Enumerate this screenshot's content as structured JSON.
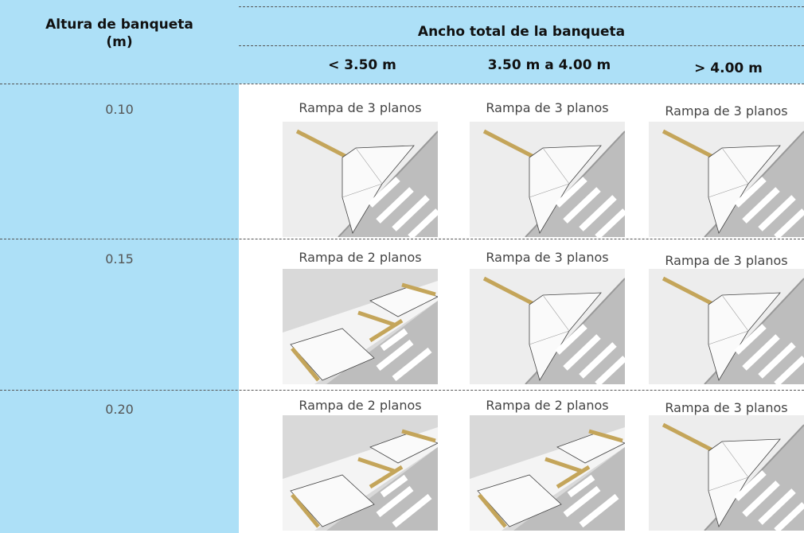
{
  "header": {
    "height_label": "Altura de banqueta (m)",
    "width_label": "Ancho total de la banqueta",
    "columns": [
      "< 3.50 m",
      "3.50 m a 4.00 m",
      "> 4.00 m"
    ]
  },
  "rows": [
    {
      "height": "0.10",
      "cells": [
        "Rampa de 3 planos",
        "Rampa de 3 planos",
        "Rampa de 3 planos"
      ]
    },
    {
      "height": "0.15",
      "cells": [
        "Rampa de 2 planos",
        "Rampa de 3 planos",
        "Rampa de 3 planos"
      ]
    },
    {
      "height": "0.20",
      "cells": [
        "Rampa de 2 planos",
        "Rampa de 2 planos",
        "Rampa de 3 planos"
      ]
    }
  ]
}
